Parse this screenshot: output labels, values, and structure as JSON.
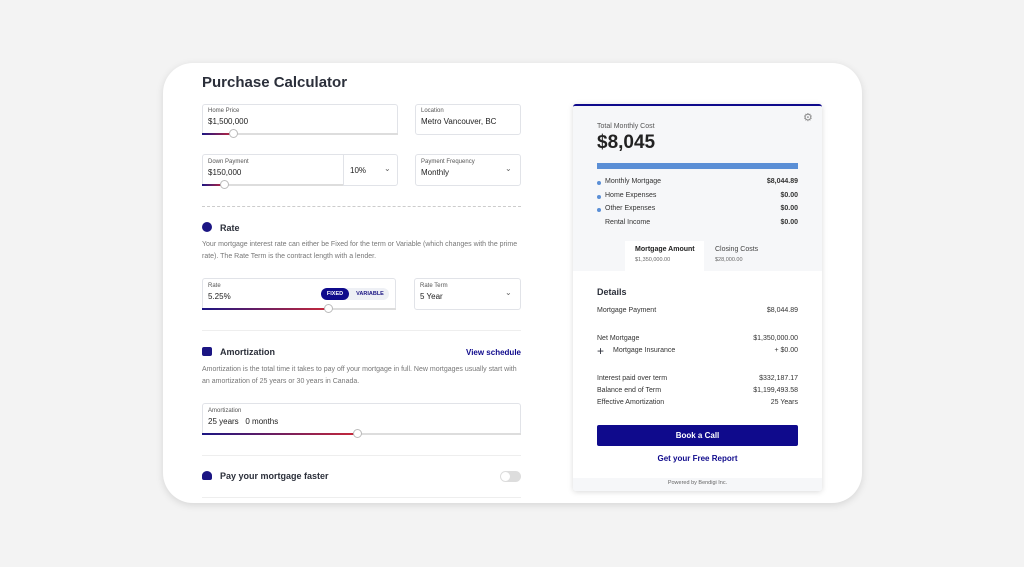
{
  "title": "Purchase Calculator",
  "inputs": {
    "home_price": {
      "label": "Home Price",
      "value": "$1,500,000"
    },
    "location": {
      "label": "Location",
      "value": "Metro Vancouver, BC"
    },
    "down_payment": {
      "label": "Down Payment",
      "value": "$150,000",
      "percent": "10%"
    },
    "payment_frequency": {
      "label": "Payment Frequency",
      "value": "Monthly"
    },
    "rate": {
      "label": "Rate",
      "value": "5.25%",
      "fixed": "FIXED",
      "variable": "VARIABLE"
    },
    "rate_term": {
      "label": "Rate Term",
      "value": "5 Year"
    },
    "amortization": {
      "label": "Amortization",
      "value": "25 years   0 months"
    }
  },
  "sections": {
    "rate": {
      "heading": "Rate",
      "description": "Your mortgage interest rate can either be Fixed for the term or Variable (which changes with the prime rate). The Rate Term is the contract length with a lender."
    },
    "amortization": {
      "heading": "Amortization",
      "link": "View schedule",
      "description": "Amortization is the total time it takes to pay off your mortgage in full. New mortgages usually start with an amortization of 25 years or 30 years in Canada."
    },
    "prepay": {
      "heading": "Pay your mortgage faster"
    }
  },
  "summary": {
    "label": "Total Monthly Cost",
    "total": "$8,045",
    "rows": [
      {
        "label": "Monthly Mortgage",
        "value": "$8,044.89"
      },
      {
        "label": "Home Expenses",
        "value": "$0.00"
      },
      {
        "label": "Other Expenses",
        "value": "$0.00"
      },
      {
        "label": "Rental Income",
        "value": "$0.00"
      }
    ],
    "tabs": [
      {
        "label": "Mortgage Amount",
        "value": "$1,350,000.00"
      },
      {
        "label": "Closing Costs",
        "value": "$28,000.00"
      }
    ],
    "details_title": "Details",
    "details": [
      {
        "label": "Mortgage Payment",
        "value": "$8,044.89"
      },
      {
        "label": "Net Mortgage",
        "value": "$1,350,000.00"
      },
      {
        "label": "Mortgage Insurance",
        "value": "+ $0.00"
      },
      {
        "label": "Interest paid over term",
        "value": "$332,187.17"
      },
      {
        "label": "Balance end of Term",
        "value": "$1,199,493.58"
      },
      {
        "label": "Effective Amortization",
        "value": "25 Years"
      }
    ],
    "button": "Book a Call",
    "link": "Get your Free Report",
    "footer": "Powered by Bendigi Inc."
  }
}
